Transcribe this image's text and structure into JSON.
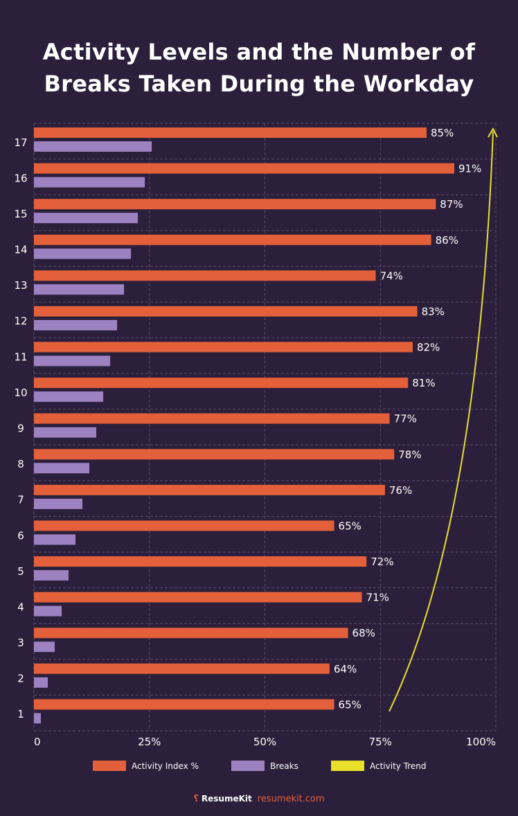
{
  "chart_data": {
    "type": "bar",
    "orientation": "horizontal",
    "title": "Activity Levels and the Number of Breaks Taken During the Workday",
    "categories": [
      "1",
      "2",
      "3",
      "4",
      "5",
      "6",
      "7",
      "8",
      "9",
      "10",
      "11",
      "12",
      "13",
      "14",
      "15",
      "16",
      "17"
    ],
    "series": [
      {
        "name": "Activity Index %",
        "color": "#e3603a",
        "values": [
          65,
          64,
          68,
          71,
          72,
          65,
          76,
          78,
          77,
          81,
          82,
          83,
          74,
          86,
          87,
          91,
          85
        ]
      },
      {
        "name": "Breaks",
        "color": "#9d82c1",
        "values": [
          1.5,
          3,
          4.5,
          6,
          7.5,
          9,
          10.5,
          12,
          13.5,
          15,
          16.5,
          18,
          19.5,
          21,
          22.5,
          24,
          25.5
        ]
      },
      {
        "name": "Activity Trend",
        "color": "#e8e02a",
        "type": "line-arrow"
      }
    ],
    "data_labels": [
      "65%",
      "64%",
      "68%",
      "71%",
      "72%",
      "65%",
      "76%",
      "78%",
      "77%",
      "81%",
      "82%",
      "83%",
      "74%",
      "86%",
      "87%",
      "91%",
      "85%"
    ],
    "xlim": [
      0,
      100
    ],
    "xticks": [
      "0",
      "25%",
      "50%",
      "75%",
      "100%"
    ],
    "grid": true,
    "legend_position": "bottom"
  },
  "footer": {
    "brand": "ResumeKit",
    "url": "resumekit.com"
  }
}
